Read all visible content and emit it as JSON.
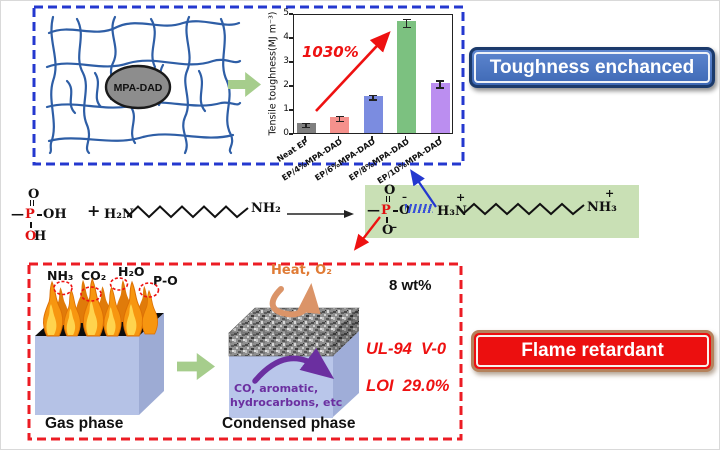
{
  "top_section": {
    "network_label": "MPA-DAD",
    "badge": "Toughness enchanced"
  },
  "chart_data": {
    "type": "bar",
    "title": "",
    "xlabel": "",
    "ylabel": "Tensile toughness(MJ m⁻³)",
    "ylim": [
      0,
      5
    ],
    "yticks": [
      0,
      1,
      2,
      3,
      4,
      5
    ],
    "categories": [
      "Neat EP",
      "EP/4%MPA-DAD",
      "EP/6%MPA-DAD",
      "EP/8%MPA-DAD",
      "EP/10%MPA-DAD"
    ],
    "values": [
      0.4,
      0.67,
      1.55,
      4.65,
      2.1
    ],
    "errors": [
      0.08,
      0.1,
      0.1,
      0.17,
      0.15
    ],
    "bar_colors": [
      "#7f7f7f",
      "#f5918c",
      "#7b8ce0",
      "#7cc180",
      "#bb8ef0"
    ],
    "legend": [],
    "grid": false,
    "annotation": "1030%",
    "annotation_color": "#ee1111"
  },
  "reaction": {
    "mpa": {
      "methyl": "—",
      "o_top": "O",
      "p": "P",
      "oh_right": "OH",
      "o_bottom": "O",
      "h_bottom": "H"
    },
    "plus": "+",
    "amine_left": "H₂N",
    "amine_right": "NH₂",
    "product": {
      "methyl": "—",
      "o_top": "O",
      "p": "P",
      "o_right": "O",
      "minus_right": "–",
      "o_bottom": "O",
      "minus_bottom": "–",
      "h3n": "H₃N",
      "plus_left": "+",
      "nh3": "NH₃",
      "plus_right": "+"
    }
  },
  "bottom_section": {
    "gas_labels": [
      "NH₃",
      "CO₂",
      "H₂O",
      "P-O"
    ],
    "gas_phase_label": "Gas phase",
    "condensed_phase_label": "Condensed phase",
    "heat_label": "Heat, O₂",
    "volatiles_line1": "CO, aromatic,",
    "volatiles_line2": "hydrocarbons, etc",
    "loading": "8 wt%",
    "ul94": "UL-94  V-0",
    "loi": "LOI  29.0%",
    "badge": "Flame retardant"
  },
  "colors": {
    "blue_box_border": "#2438cf",
    "red_box_border": "#ec1c24",
    "badge_blue": "#4a77c4",
    "badge_red": "#ec0f0f",
    "green_arrow": "#a6cd8c",
    "product_background": "#c9e0b5",
    "network_line": "#2e5ea6",
    "phosphorus_red": "#e01010",
    "ionic_bond_blue": "#3750d8",
    "purple_arrow": "#6b2fa0",
    "heat_arrow": "#db9468",
    "cube_front": "#b5c2e6",
    "cube_side": "#9dabd4",
    "flame_orange": "#f79610",
    "flame_yellow": "#ffd34d"
  }
}
